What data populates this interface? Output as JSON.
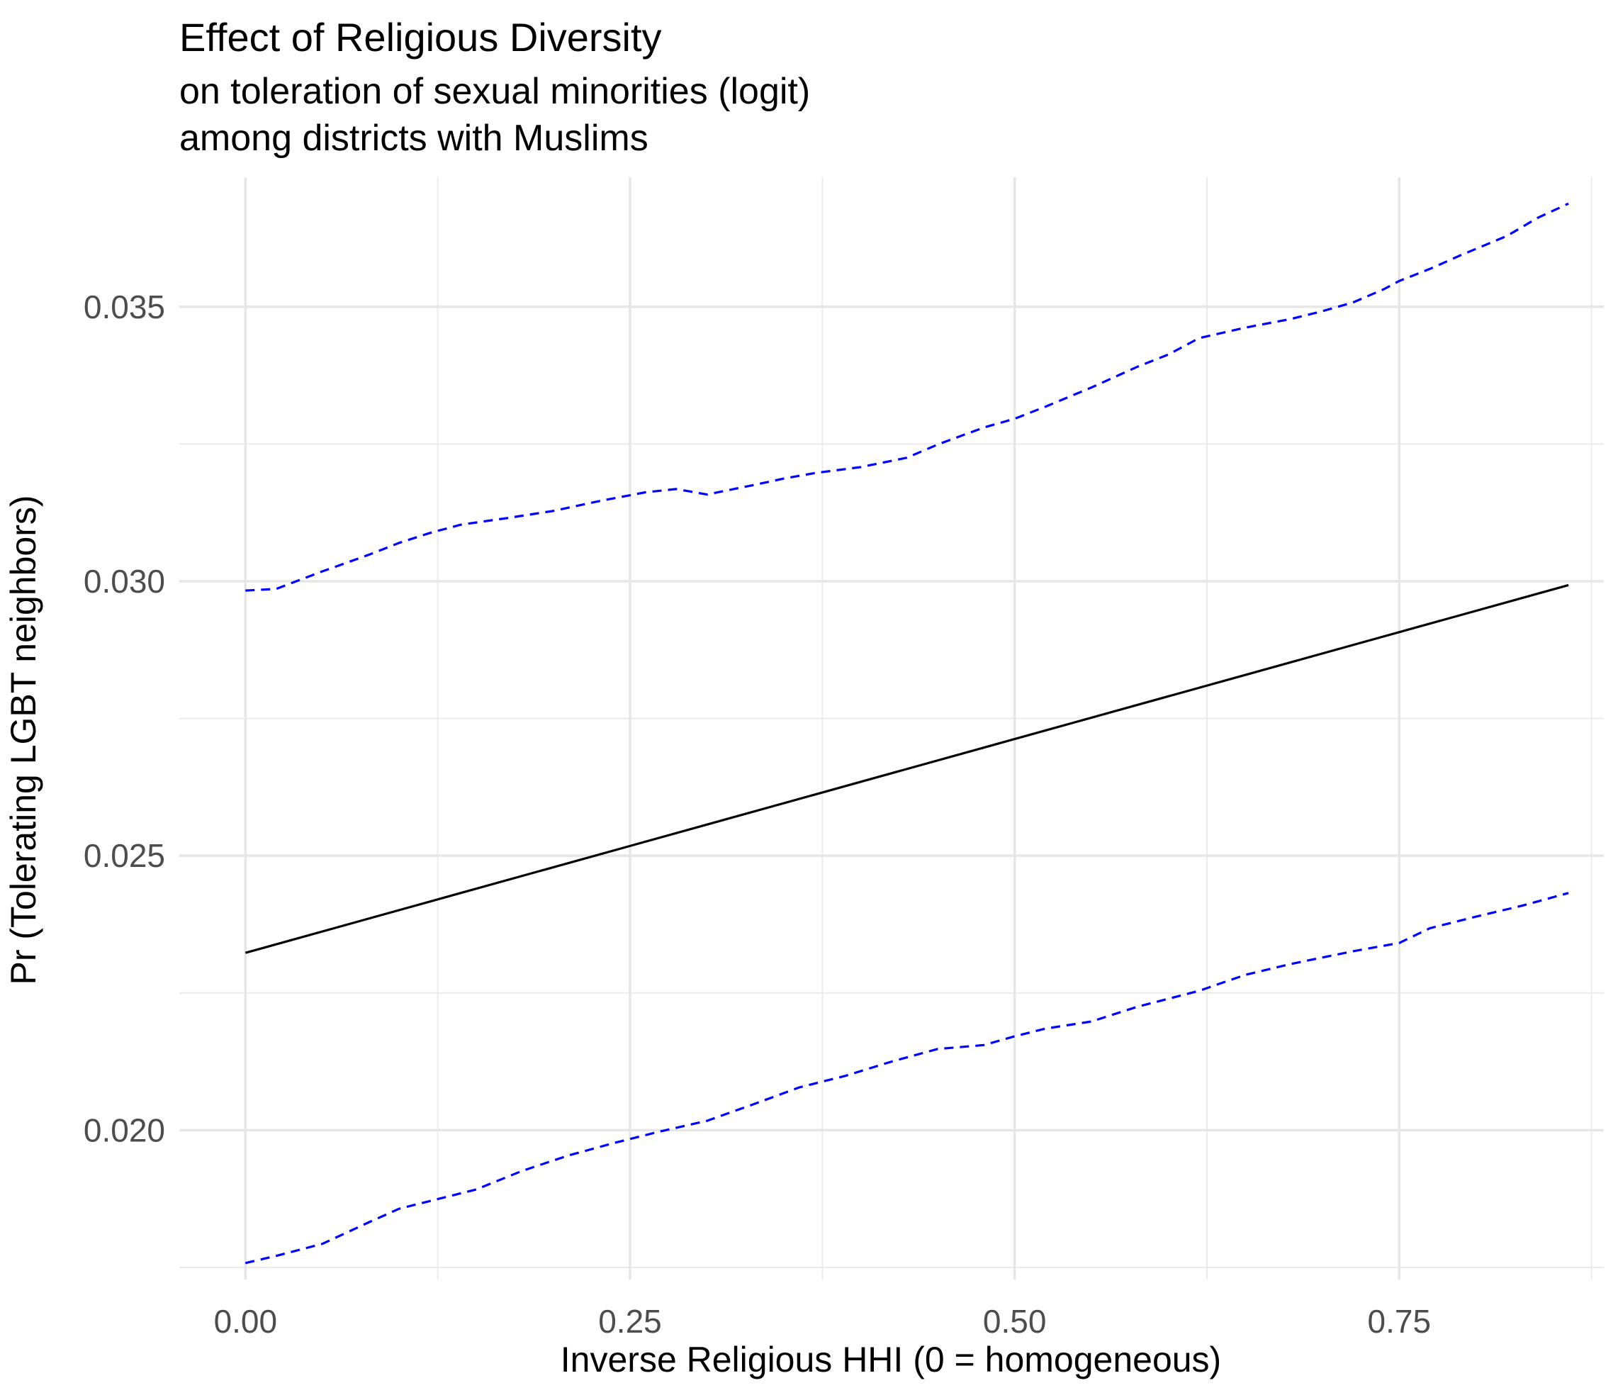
{
  "chart_data": {
    "type": "line",
    "title": "Effect of Religious Diversity",
    "subtitle_lines": [
      "on toleration of sexual minorities (logit)",
      "among districts with Muslims"
    ],
    "xlabel": "Inverse Religious HHI (0 = homogeneous)",
    "ylabel": "Pr (Tolerating LGBT neighbors)",
    "xlim": [
      -0.043,
      0.883
    ],
    "ylim": [
      0.01728,
      0.03736
    ],
    "x_ticks": [
      0.0,
      0.25,
      0.5,
      0.75
    ],
    "x_tick_labels": [
      "0.00",
      "0.25",
      "0.50",
      "0.75"
    ],
    "x_minor_ticks": [
      0.125,
      0.375,
      0.625,
      0.875
    ],
    "y_ticks": [
      0.02,
      0.025,
      0.03,
      0.035
    ],
    "y_tick_labels": [
      "0.020",
      "0.025",
      "0.030",
      "0.035"
    ],
    "y_minor_ticks": [
      0.0175,
      0.0225,
      0.0275,
      0.0325
    ],
    "grid": true,
    "legend": "none",
    "series": [
      {
        "role": "estimate",
        "color": "#000000",
        "dash": "solid",
        "x": [
          0.0,
          0.86
        ],
        "y": [
          0.02323,
          0.02993
        ]
      },
      {
        "role": "upper-bound",
        "color": "#0000ff",
        "dash": "dashed",
        "x": [
          0.0,
          0.02,
          0.05,
          0.08,
          0.1,
          0.12,
          0.14,
          0.17,
          0.2,
          0.23,
          0.26,
          0.28,
          0.3,
          0.33,
          0.35,
          0.37,
          0.4,
          0.43,
          0.45,
          0.48,
          0.5,
          0.52,
          0.55,
          0.58,
          0.6,
          0.62,
          0.65,
          0.68,
          0.7,
          0.72,
          0.74,
          0.75,
          0.77,
          0.79,
          0.82,
          0.84,
          0.86
        ],
        "y": [
          0.02983,
          0.02986,
          0.03018,
          0.03048,
          0.0307,
          0.03088,
          0.03103,
          0.03115,
          0.03128,
          0.03146,
          0.03162,
          0.03168,
          0.03158,
          0.03175,
          0.03187,
          0.03197,
          0.03208,
          0.03225,
          0.03249,
          0.0328,
          0.03296,
          0.03318,
          0.03353,
          0.03391,
          0.03413,
          0.03443,
          0.03462,
          0.03478,
          0.03492,
          0.03508,
          0.03532,
          0.03547,
          0.03569,
          0.03594,
          0.03629,
          0.03662,
          0.03688
        ]
      },
      {
        "role": "lower-bound",
        "color": "#0000ff",
        "dash": "dashed",
        "x": [
          0.0,
          0.02,
          0.05,
          0.08,
          0.1,
          0.12,
          0.15,
          0.18,
          0.21,
          0.24,
          0.27,
          0.3,
          0.33,
          0.36,
          0.39,
          0.42,
          0.45,
          0.48,
          0.5,
          0.52,
          0.55,
          0.58,
          0.62,
          0.65,
          0.68,
          0.72,
          0.75,
          0.77,
          0.8,
          0.83,
          0.86
        ],
        "y": [
          0.01758,
          0.01771,
          0.01793,
          0.01832,
          0.01857,
          0.01871,
          0.01892,
          0.01926,
          0.01954,
          0.01977,
          0.01998,
          0.02017,
          0.02047,
          0.02078,
          0.02099,
          0.02125,
          0.02148,
          0.02155,
          0.02171,
          0.02185,
          0.02198,
          0.02225,
          0.02254,
          0.02283,
          0.02303,
          0.02326,
          0.02341,
          0.02368,
          0.02389,
          0.02409,
          0.02432
        ]
      }
    ]
  }
}
